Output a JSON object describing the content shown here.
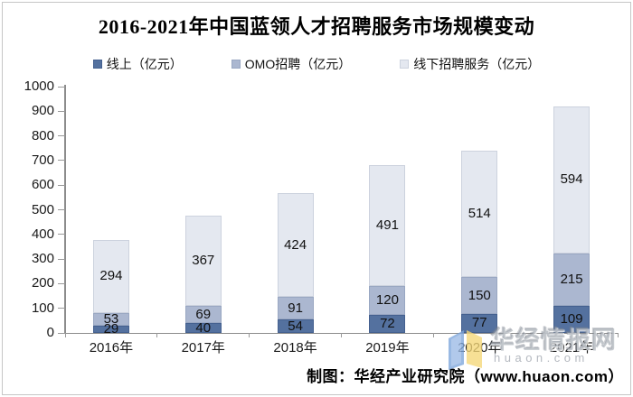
{
  "chart_data": {
    "type": "bar",
    "stacked": true,
    "title": "2016-2021年中国蓝领人才招聘服务市场规模变动",
    "categories": [
      "2016年",
      "2017年",
      "2018年",
      "2019年",
      "2020年",
      "2021年"
    ],
    "series": [
      {
        "name": "线上（亿元）",
        "color": "#54719f",
        "border": "#44608f",
        "values": [
          29,
          40,
          54,
          72,
          77,
          109
        ]
      },
      {
        "name": "OMO招聘（亿元）",
        "color": "#abb7d0",
        "border": "#99a7c2",
        "values": [
          53,
          69,
          91,
          120,
          150,
          215
        ]
      },
      {
        "name": "线下招聘服务（亿元）",
        "color": "#e4e8f0",
        "border": "#ccd2de",
        "values": [
          294,
          367,
          424,
          491,
          514,
          594
        ]
      }
    ],
    "ylim": [
      0,
      1000
    ],
    "ytick_interval": 100,
    "grid": false,
    "legend_position": "top",
    "data_labels": true,
    "xlabel": "",
    "ylabel": ""
  },
  "footer": {
    "credit": "制图：华经产业研究院（www.huaon.com）"
  },
  "watermark": {
    "brand": "华经情报网",
    "domain": "huaon.com"
  },
  "colors": {
    "axis": "#8c8c8c",
    "tick": "#999999",
    "label_text": "#1a1a1a",
    "logo_blue": "#7da6dc",
    "logo_blue_dark": "#5d8cc9",
    "logo_yellow": "#f5d878"
  }
}
